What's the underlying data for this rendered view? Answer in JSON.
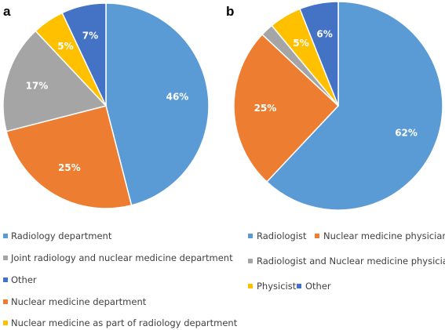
{
  "chart_data": [
    {
      "type": "pie",
      "panel_label": "a",
      "start_angle_deg": 0,
      "direction": "clockwise",
      "slices": [
        {
          "name": "Radiology department",
          "value": 46,
          "label": "46%",
          "color": "#5B9BD5"
        },
        {
          "name": "Nuclear medicine department",
          "value": 25,
          "label": "25%",
          "color": "#ED7D31"
        },
        {
          "name": "Joint radiology and nuclear medicine department",
          "value": 17,
          "label": "17%",
          "color": "#A5A5A5"
        },
        {
          "name": "Nuclear medicine as part of radiology department",
          "value": 5,
          "label": "5%",
          "color": "#FFC000"
        },
        {
          "name": "Other",
          "value": 7,
          "label": "7%",
          "color": "#4472C4"
        }
      ],
      "legend": {
        "placement": "bottom",
        "entries": [
          {
            "label": "Radiology department",
            "color": "#5B9BD5"
          },
          {
            "label": "Joint radiology and nuclear medicine department",
            "color": "#A5A5A5"
          },
          {
            "label": "Other",
            "color": "#4472C4"
          },
          {
            "label": "Nuclear medicine department",
            "color": "#ED7D31"
          },
          {
            "label": "Nuclear medicine as part of radiology department",
            "color": "#FFC000"
          }
        ]
      }
    },
    {
      "type": "pie",
      "panel_label": "b",
      "start_angle_deg": 0,
      "direction": "clockwise",
      "slices": [
        {
          "name": "Radiologist",
          "value": 62,
          "label": "62%",
          "color": "#5B9BD5"
        },
        {
          "name": "Nuclear medicine physician",
          "value": 25,
          "label": "25%",
          "color": "#ED7D31"
        },
        {
          "name": "Radiologist and Nuclear medicine physician",
          "value": 2,
          "label": "",
          "color": "#A5A5A5"
        },
        {
          "name": "Physicist",
          "value": 5,
          "label": "5%",
          "color": "#FFC000"
        },
        {
          "name": "Other",
          "value": 6,
          "label": "6%",
          "color": "#4472C4"
        }
      ],
      "legend": {
        "placement": "bottom",
        "entries": [
          {
            "label": "Radiologist",
            "color": "#5B9BD5"
          },
          {
            "label": "Nuclear medicine physician",
            "color": "#ED7D31"
          },
          {
            "label": "Radiologist and Nuclear medicine physician",
            "color": "#A5A5A5"
          },
          {
            "label": "Physicist",
            "color": "#FFC000"
          },
          {
            "label": "Other",
            "color": "#4472C4"
          }
        ]
      }
    }
  ]
}
